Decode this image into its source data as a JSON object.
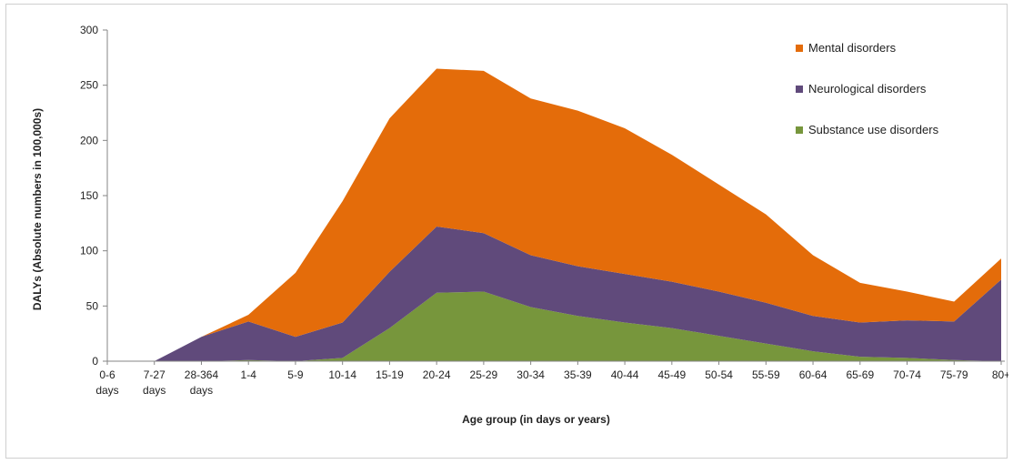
{
  "chart_data": {
    "type": "area",
    "stacked": true,
    "xlabel": "Age group (in days or years)",
    "ylabel": "DALYs (Absolute numbers in 100,000s)",
    "ylim": [
      0,
      300
    ],
    "yticks": [
      0,
      50,
      100,
      150,
      200,
      250,
      300
    ],
    "grid": false,
    "legend_position": "top-right",
    "categories": [
      [
        "0-6",
        "days"
      ],
      [
        "7-27",
        "days"
      ],
      [
        "28-364",
        "days"
      ],
      [
        "1-4"
      ],
      [
        "5-9"
      ],
      [
        "10-14"
      ],
      [
        "15-19"
      ],
      [
        "20-24"
      ],
      [
        "25-29"
      ],
      [
        "30-34"
      ],
      [
        "35-39"
      ],
      [
        "40-44"
      ],
      [
        "45-49"
      ],
      [
        "50-54"
      ],
      [
        "55-59"
      ],
      [
        "60-64"
      ],
      [
        "65-69"
      ],
      [
        "70-74"
      ],
      [
        "75-79"
      ],
      [
        "80+"
      ]
    ],
    "series": [
      {
        "name": "Substance use disorders",
        "color": "#77963c",
        "values": [
          0,
          0,
          0,
          1,
          0,
          3,
          30,
          62,
          63,
          49,
          41,
          35,
          30,
          23,
          16,
          9,
          4,
          3,
          1,
          0
        ]
      },
      {
        "name": "Neurological disorders",
        "color": "#604a7b",
        "values": [
          0,
          0,
          22,
          35,
          22,
          32,
          51,
          60,
          53,
          47,
          45,
          44,
          42,
          40,
          37,
          32,
          31,
          34,
          35,
          74
        ]
      },
      {
        "name": "Mental disorders",
        "color": "#e46c0a",
        "values": [
          0,
          0,
          0,
          6,
          58,
          110,
          139,
          143,
          147,
          142,
          141,
          132,
          115,
          97,
          80,
          55,
          36,
          26,
          18,
          19
        ]
      }
    ],
    "legend_order": [
      "Mental disorders",
      "Neurological disorders",
      "Substance use disorders"
    ]
  }
}
